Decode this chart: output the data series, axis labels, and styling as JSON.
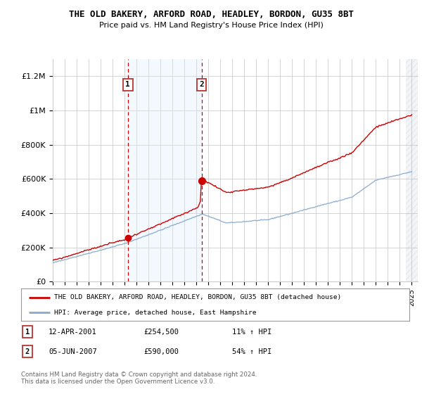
{
  "title": "THE OLD BAKERY, ARFORD ROAD, HEADLEY, BORDON, GU35 8BT",
  "subtitle": "Price paid vs. HM Land Registry's House Price Index (HPI)",
  "ylim": [
    0,
    1300000
  ],
  "xlim_start": 1995.0,
  "xlim_end": 2025.5,
  "yticks": [
    0,
    200000,
    400000,
    600000,
    800000,
    1000000,
    1200000
  ],
  "ytick_labels": [
    "£0",
    "£200K",
    "£400K",
    "£600K",
    "£800K",
    "£1M",
    "£1.2M"
  ],
  "xtick_years": [
    1995,
    1996,
    1997,
    1998,
    1999,
    2000,
    2001,
    2002,
    2003,
    2004,
    2005,
    2006,
    2007,
    2008,
    2009,
    2010,
    2011,
    2012,
    2013,
    2014,
    2015,
    2016,
    2017,
    2018,
    2019,
    2020,
    2021,
    2022,
    2023,
    2024,
    2025
  ],
  "purchase1_x": 2001.28,
  "purchase1_y": 254500,
  "purchase1_label": "1",
  "purchase1_date": "12-APR-2001",
  "purchase1_price": "£254,500",
  "purchase1_hpi": "11% ↑ HPI",
  "purchase2_x": 2007.43,
  "purchase2_y": 590000,
  "purchase2_label": "2",
  "purchase2_date": "05-JUN-2007",
  "purchase2_price": "£590,000",
  "purchase2_hpi": "54% ↑ HPI",
  "line_color_red": "#cc0000",
  "line_color_blue": "#88aacc",
  "shade_color": "#ddeeff",
  "background_color": "#ffffff",
  "grid_color": "#cccccc",
  "legend_label_red": "THE OLD BAKERY, ARFORD ROAD, HEADLEY, BORDON, GU35 8BT (detached house)",
  "legend_label_blue": "HPI: Average price, detached house, East Hampshire",
  "footer": "Contains HM Land Registry data © Crown copyright and database right 2024.\nThis data is licensed under the Open Government Licence v3.0."
}
